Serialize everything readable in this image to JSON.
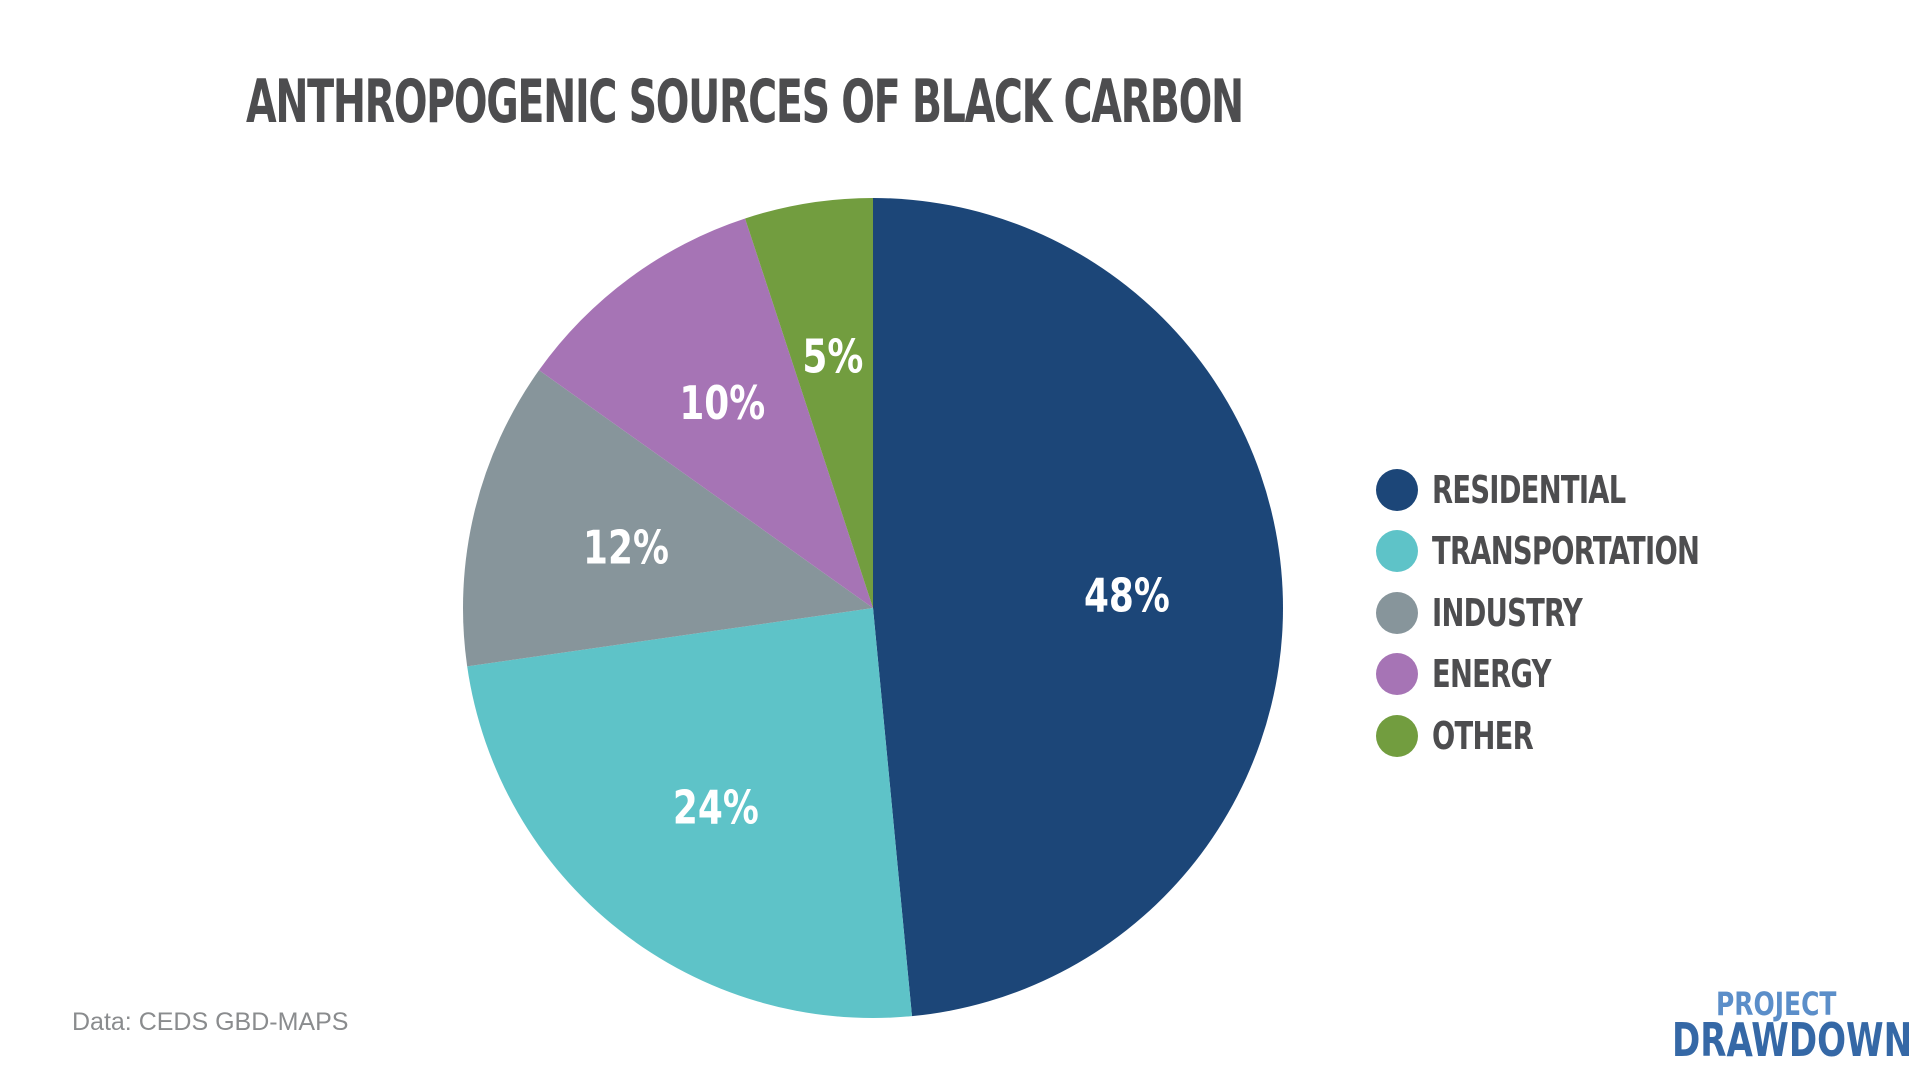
{
  "chart_data": {
    "type": "pie",
    "title": "ANTHROPOGENIC SOURCES OF BLACK CARBON",
    "legend_position": "right",
    "slices": [
      {
        "label": "RESIDENTIAL",
        "value": 48,
        "value_label": "48%",
        "color": "#1c4678"
      },
      {
        "label": "TRANSPORTATION",
        "value": 24,
        "value_label": "24%",
        "color": "#5ec3c8"
      },
      {
        "label": "INDUSTRY",
        "value": 12,
        "value_label": "12%",
        "color": "#87959b"
      },
      {
        "label": "ENERGY",
        "value": 10,
        "value_label": "10%",
        "color": "#a674b5"
      },
      {
        "label": "OTHER",
        "value": 5,
        "value_label": "5%",
        "color": "#729d3f"
      }
    ]
  },
  "source_note": "Data: CEDS GBD-MAPS",
  "logo": {
    "line_1": "PROJECT",
    "line_2": "DRAWDOWN"
  }
}
